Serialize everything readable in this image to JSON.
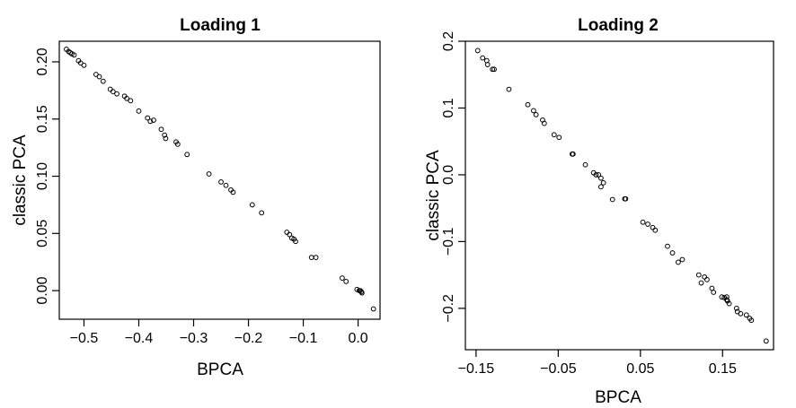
{
  "chart_data": [
    {
      "type": "scatter",
      "title": "Loading 1",
      "xlabel": "BPCA",
      "ylabel": "classic PCA",
      "xlim": [
        -0.545,
        0.04
      ],
      "ylim": [
        -0.025,
        0.218
      ],
      "xticks": [
        -0.5,
        -0.4,
        -0.3,
        -0.2,
        -0.1,
        0.0
      ],
      "xtick_labels": [
        "−0.5",
        "−0.4",
        "−0.3",
        "−0.2",
        "−0.1",
        "0.0"
      ],
      "yticks": [
        0.0,
        0.05,
        0.1,
        0.15,
        0.2
      ],
      "ytick_labels": [
        "0.00",
        "0.05",
        "0.10",
        "0.15",
        "0.20"
      ],
      "grid": false,
      "marker": "open-circle",
      "x": [
        -0.532,
        -0.528,
        -0.525,
        -0.522,
        -0.518,
        -0.51,
        -0.506,
        -0.5,
        -0.478,
        -0.472,
        -0.465,
        -0.452,
        -0.447,
        -0.44,
        -0.426,
        -0.422,
        -0.415,
        -0.4,
        -0.384,
        -0.379,
        -0.373,
        -0.359,
        -0.353,
        -0.351,
        -0.332,
        -0.329,
        -0.312,
        -0.272,
        -0.25,
        -0.241,
        -0.232,
        -0.228,
        -0.193,
        -0.176,
        -0.13,
        -0.125,
        -0.121,
        -0.117,
        -0.114,
        -0.085,
        -0.077,
        -0.029,
        -0.022,
        -0.002,
        0.002,
        0.004,
        0.006,
        0.007,
        0.028
      ],
      "y": [
        0.211,
        0.209,
        0.208,
        0.207,
        0.206,
        0.201,
        0.199,
        0.197,
        0.189,
        0.187,
        0.183,
        0.176,
        0.174,
        0.172,
        0.17,
        0.168,
        0.166,
        0.157,
        0.151,
        0.148,
        0.149,
        0.141,
        0.136,
        0.133,
        0.13,
        0.128,
        0.119,
        0.102,
        0.095,
        0.092,
        0.088,
        0.086,
        0.075,
        0.068,
        0.051,
        0.049,
        0.046,
        0.045,
        0.043,
        0.029,
        0.029,
        0.011,
        0.008,
        0.001,
        0.0,
        0.0,
        -0.001,
        -0.002,
        -0.016
      ]
    },
    {
      "type": "scatter",
      "title": "Loading 2",
      "xlabel": "BPCA",
      "ylabel": "classic PCA",
      "xlim": [
        -0.163,
        0.212
      ],
      "ylim": [
        -0.262,
        0.2
      ],
      "xticks": [
        -0.15,
        -0.05,
        0.05,
        0.15
      ],
      "xtick_labels": [
        "−0.15",
        "−0.05",
        "0.05",
        "0.15"
      ],
      "yticks": [
        -0.2,
        -0.1,
        0.0,
        0.1,
        0.2
      ],
      "ytick_labels": [
        "−0.2",
        "−0.1",
        "0.0",
        "0.1",
        "0.2"
      ],
      "grid": false,
      "marker": "open-circle",
      "x": [
        -0.148,
        -0.142,
        -0.137,
        -0.136,
        -0.13,
        -0.128,
        -0.11,
        -0.087,
        -0.08,
        -0.077,
        -0.069,
        -0.067,
        -0.055,
        -0.049,
        -0.033,
        -0.032,
        -0.017,
        -0.007,
        -0.004,
        -0.001,
        0.002,
        0.002,
        0.005,
        0.016,
        0.031,
        0.032,
        0.053,
        0.059,
        0.065,
        0.068,
        0.083,
        0.089,
        0.096,
        0.101,
        0.121,
        0.124,
        0.128,
        0.131,
        0.137,
        0.139,
        0.149,
        0.152,
        0.155,
        0.155,
        0.156,
        0.158,
        0.167,
        0.168,
        0.172,
        0.179,
        0.183,
        0.185,
        0.203
      ],
      "y": [
        0.186,
        0.175,
        0.171,
        0.165,
        0.158,
        0.158,
        0.128,
        0.105,
        0.096,
        0.09,
        0.082,
        0.077,
        0.06,
        0.056,
        0.031,
        0.031,
        0.015,
        0.003,
        0.0,
        0.0,
        -0.005,
        -0.018,
        -0.012,
        -0.037,
        -0.036,
        -0.036,
        -0.071,
        -0.074,
        -0.079,
        -0.083,
        -0.107,
        -0.117,
        -0.131,
        -0.127,
        -0.15,
        -0.162,
        -0.153,
        -0.157,
        -0.17,
        -0.176,
        -0.183,
        -0.184,
        -0.183,
        -0.187,
        -0.189,
        -0.193,
        -0.2,
        -0.205,
        -0.208,
        -0.21,
        -0.215,
        -0.218,
        -0.249
      ]
    }
  ]
}
